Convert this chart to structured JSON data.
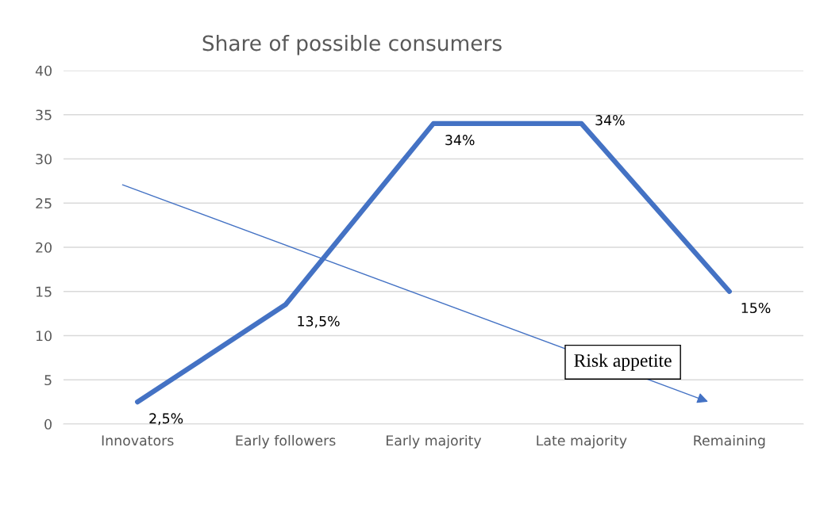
{
  "chart_data": {
    "type": "line",
    "title": "Share of possible consumers",
    "categories": [
      "Innovators",
      "Early followers",
      "Early majority",
      "Late majority",
      "Remaining"
    ],
    "series": [
      {
        "color": "#4472c4",
        "values": [
          2.5,
          13.5,
          34,
          34,
          15
        ],
        "value_labels": [
          "2,5%",
          "13,5%",
          "34%",
          "34%",
          "15%"
        ]
      }
    ],
    "ylim": [
      0,
      40
    ],
    "yticks": [
      0,
      5,
      10,
      15,
      20,
      25,
      30,
      35,
      40
    ],
    "grid": "y",
    "legend": false,
    "marker": "none",
    "line_style": "solid",
    "annotations": [
      "Risk appetite"
    ]
  }
}
